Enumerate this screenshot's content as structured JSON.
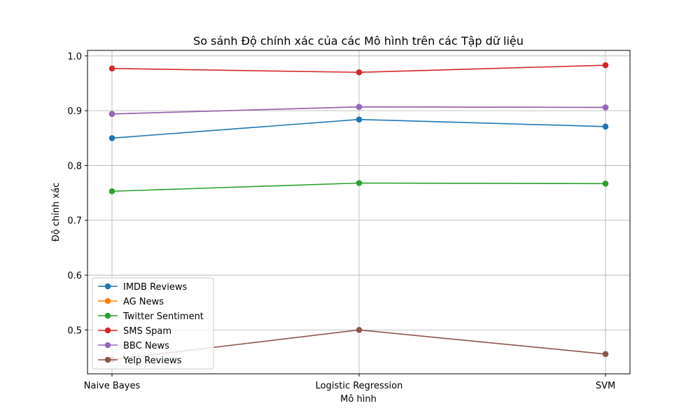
{
  "chart_data": {
    "type": "line",
    "title": "So sánh Độ chính xác của các Mô hình trên các Tập dữ liệu",
    "xlabel": "Mô hình",
    "ylabel": "Độ chính xác",
    "categories": [
      "Naive Bayes",
      "Logistic Regression",
      "SVM"
    ],
    "ylim": [
      0.42,
      1.01
    ],
    "yticks": [
      0.5,
      0.6,
      0.7,
      0.8,
      0.9,
      1.0
    ],
    "ytick_labels": [
      "0.5",
      "0.6",
      "0.7",
      "0.8",
      "0.9",
      "1.0"
    ],
    "grid": true,
    "legend_position": "lower-left",
    "series": [
      {
        "name": "IMDB Reviews",
        "color": "#1f77b4",
        "values": [
          0.85,
          0.884,
          0.871
        ]
      },
      {
        "name": "AG News",
        "color": "#ff7f0e",
        "values": [
          0.894,
          0.907,
          0.906
        ]
      },
      {
        "name": "Twitter Sentiment",
        "color": "#2ca02c",
        "values": [
          0.753,
          0.768,
          0.767
        ]
      },
      {
        "name": "SMS Spam",
        "color": "#d62728",
        "values": [
          0.977,
          0.97,
          0.983
        ]
      },
      {
        "name": "BBC News",
        "color": "#9467bd",
        "values": [
          0.894,
          0.907,
          0.906
        ]
      },
      {
        "name": "Yelp Reviews",
        "color": "#8c564b",
        "values": [
          0.446,
          0.5,
          0.456
        ]
      }
    ]
  }
}
